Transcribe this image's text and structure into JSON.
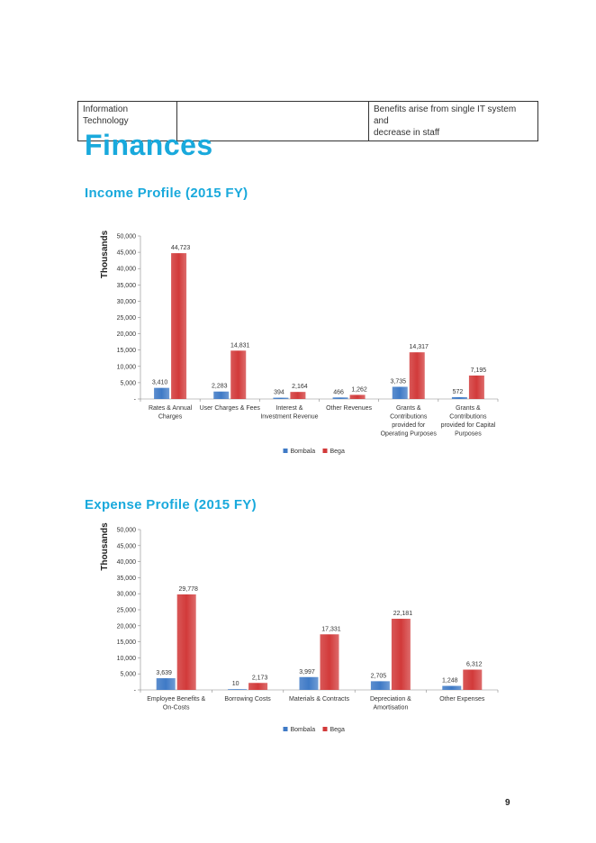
{
  "table": {
    "col1": "Information\nTechnology",
    "col2": "",
    "col3": "Benefits arise from single IT system and\ndecrease in staff"
  },
  "heading": "Finances",
  "income_heading": "Income Profile (2015 FY)",
  "expense_heading": "Expense Profile (2015 FY)",
  "page_number": "9",
  "colors": {
    "bombala": "#3f7ac6",
    "bega": "#d23a3a",
    "heading": "#19a9dc"
  },
  "chart_data": [
    {
      "type": "bar",
      "title": "",
      "ylabel": "Thousands",
      "ylim": [
        0,
        50000
      ],
      "yticks": [
        "-",
        "5,000",
        "10,000",
        "15,000",
        "20,000",
        "25,000",
        "30,000",
        "35,000",
        "40,000",
        "45,000",
        "50,000"
      ],
      "categories": [
        [
          "Rates & Annual",
          "Charges"
        ],
        [
          "User Charges & Fees"
        ],
        [
          "Interest &",
          "Investment Revenue"
        ],
        [
          "Other Revenues"
        ],
        [
          "Grants &",
          "Contributions",
          "provided for",
          "Operating Purposes"
        ],
        [
          "Grants &",
          "Contributions",
          "provided for Capital",
          "Purposes"
        ]
      ],
      "series": [
        {
          "name": "Bombala",
          "values": [
            3410,
            2283,
            394,
            466,
            3735,
            572
          ],
          "labels": [
            "3,410",
            "2,283",
            "394",
            "466",
            "3,735",
            "572"
          ]
        },
        {
          "name": "Bega",
          "values": [
            44723,
            14831,
            2164,
            1262,
            14317,
            7195
          ],
          "labels": [
            "44,723",
            "14,831",
            "2,164",
            "1,262",
            "14,317",
            "7,195"
          ]
        }
      ],
      "legend": "bottom"
    },
    {
      "type": "bar",
      "title": "",
      "ylabel": "Thousands",
      "ylim": [
        0,
        50000
      ],
      "yticks": [
        "-",
        "5,000",
        "10,000",
        "15,000",
        "20,000",
        "25,000",
        "30,000",
        "35,000",
        "40,000",
        "45,000",
        "50,000"
      ],
      "categories": [
        [
          "Employee Benefits &",
          "On-Costs"
        ],
        [
          "Borrowing Costs"
        ],
        [
          "Materials & Contracts"
        ],
        [
          "Depreciation &",
          "Amortisation"
        ],
        [
          "Other Expenses"
        ]
      ],
      "series": [
        {
          "name": "Bombala",
          "values": [
            3639,
            10,
            3997,
            2705,
            1248
          ],
          "labels": [
            "3,639",
            "10",
            "3,997",
            "2,705",
            "1,248"
          ]
        },
        {
          "name": "Bega",
          "values": [
            29778,
            2173,
            17331,
            22181,
            6312
          ],
          "labels": [
            "29,778",
            "2,173",
            "17,331",
            "22,181",
            "6,312"
          ]
        }
      ],
      "legend": "bottom"
    }
  ]
}
